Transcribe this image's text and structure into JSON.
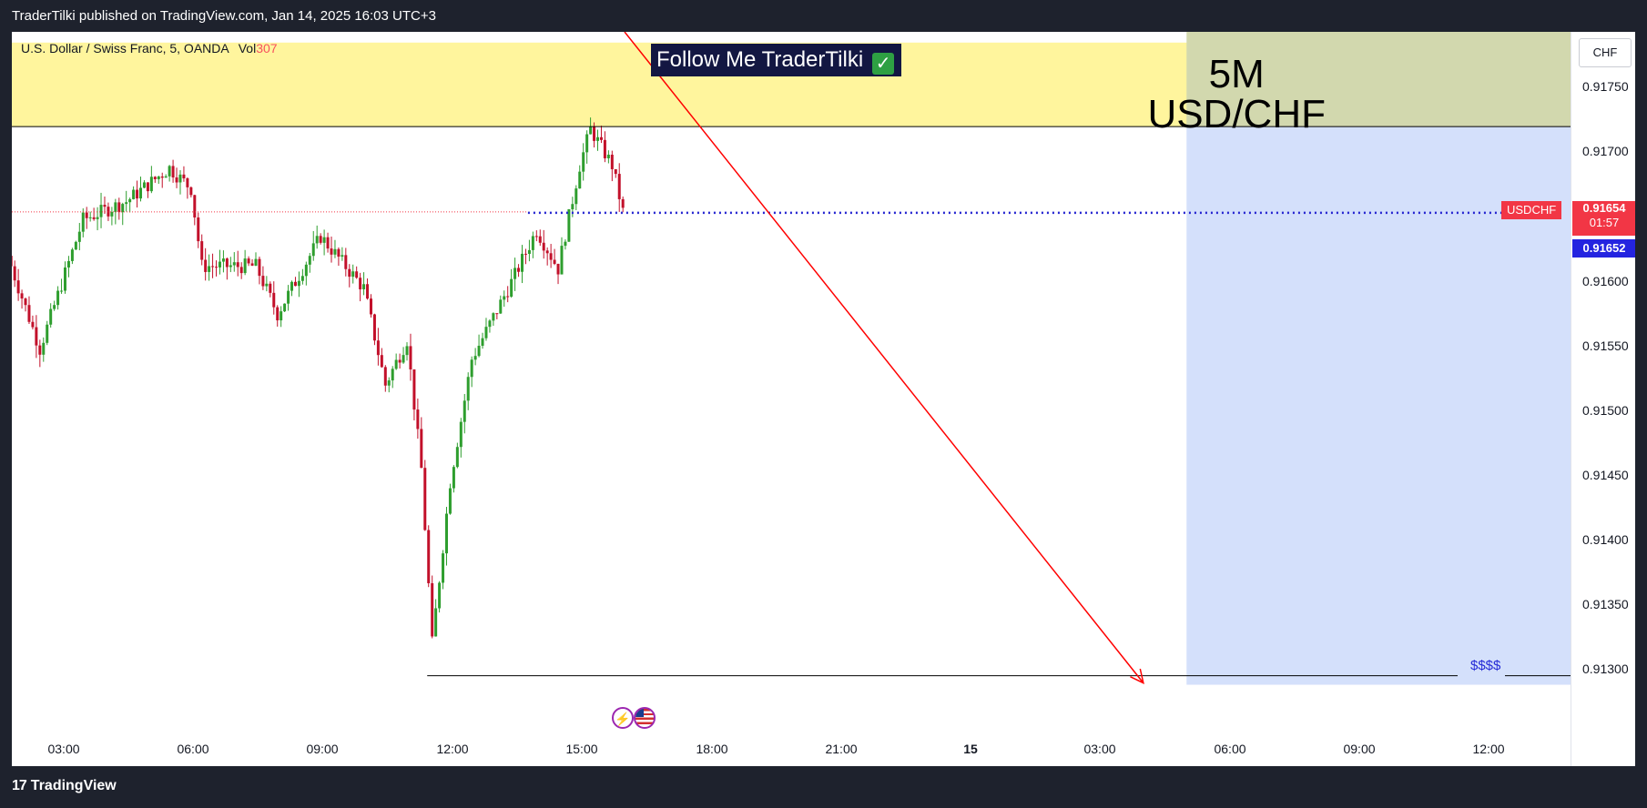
{
  "header": {
    "published": "TraderTilki published on TradingView.com, Jan 14, 2025 16:03 UTC+3"
  },
  "legend": {
    "symbol": "U.S. Dollar / Swiss Franc, 5, OANDA",
    "vol_label": "Vol",
    "vol_value": "307"
  },
  "overlay": {
    "follow": "Follow Me TraderTilki",
    "follow_check": "✓",
    "big_line1": "5M",
    "big_line2": "USD/CHF",
    "target_label": "$$$$"
  },
  "price_axis": {
    "currency": "CHF",
    "ticks": [
      "0.91750",
      "0.91700",
      "0.91600",
      "0.91550",
      "0.91500",
      "0.91450",
      "0.91400",
      "0.91350",
      "0.91300"
    ],
    "symbol_label": "USDCHF",
    "last_price": "0.91654",
    "countdown": "01:57",
    "bid_price": "0.91652"
  },
  "time_axis": {
    "ticks": [
      "03:00",
      "06:00",
      "09:00",
      "12:00",
      "15:00",
      "18:00",
      "21:00",
      "15",
      "03:00",
      "06:00",
      "09:00",
      "12:00"
    ]
  },
  "colors": {
    "up": "#089981",
    "down": "#f23645",
    "candle_up": "#2e9e2e",
    "candle_down": "#c2102a",
    "zone_top": "#fff59d",
    "zone_right": "#d4e0fb",
    "arrow": "#ff0000",
    "dotted": "#2424d0"
  },
  "icons": {
    "event1": "lightning-icon",
    "event2": "us-flag-icon",
    "logo": "tradingview-logo-icon"
  },
  "chart_data": {
    "type": "candlestick",
    "symbol": "U.S. Dollar / Swiss Franc, 5, OANDA",
    "ylim": [
      0.91275,
      0.91785
    ],
    "xlabel": "",
    "ylabel": "",
    "grid": false,
    "series_anchors": [
      {
        "time": "Jan 14 01:45",
        "price": 0.9162
      },
      {
        "time": "Jan 14 02:30",
        "price": 0.91548
      },
      {
        "time": "Jan 14 03:30",
        "price": 0.91648
      },
      {
        "time": "Jan 14 04:30",
        "price": 0.91662
      },
      {
        "time": "Jan 14 05:30",
        "price": 0.91688
      },
      {
        "time": "Jan 14 06:00",
        "price": 0.91672
      },
      {
        "time": "Jan 14 06:15",
        "price": 0.91612
      },
      {
        "time": "Jan 14 07:30",
        "price": 0.91612
      },
      {
        "time": "Jan 14 08:00",
        "price": 0.91575
      },
      {
        "time": "Jan 14 09:00",
        "price": 0.91635
      },
      {
        "time": "Jan 14 10:00",
        "price": 0.91595
      },
      {
        "time": "Jan 14 10:30",
        "price": 0.9152
      },
      {
        "time": "Jan 14 11:00",
        "price": 0.91555
      },
      {
        "time": "Jan 14 11:20",
        "price": 0.91455
      },
      {
        "time": "Jan 14 11:35",
        "price": 0.9132
      },
      {
        "time": "Jan 14 12:00",
        "price": 0.91445
      },
      {
        "time": "Jan 14 12:30",
        "price": 0.9154
      },
      {
        "time": "Jan 14 13:30",
        "price": 0.91605
      },
      {
        "time": "Jan 14 14:00",
        "price": 0.9164
      },
      {
        "time": "Jan 14 14:30",
        "price": 0.9161
      },
      {
        "time": "Jan 14 15:00",
        "price": 0.9169
      },
      {
        "time": "Jan 14 15:15",
        "price": 0.91718
      },
      {
        "time": "Jan 14 15:45",
        "price": 0.9169
      },
      {
        "time": "Jan 14 16:00",
        "price": 0.91654
      }
    ],
    "last_price": 0.91654,
    "horizontal_levels": [
      0.9172,
      0.91295
    ],
    "arrow": {
      "from": {
        "time": "Jan 14 16:00",
        "price": 0.91785
      },
      "to": {
        "time": "Jan 15 04:00",
        "price": 0.91295
      }
    },
    "zones": [
      {
        "from_price": 0.9172,
        "to_price": 0.91785,
        "label": ""
      },
      {
        "from_time": "Jan 15 05:00",
        "price_from": 0.91288,
        "price_to": 0.91785
      }
    ]
  }
}
